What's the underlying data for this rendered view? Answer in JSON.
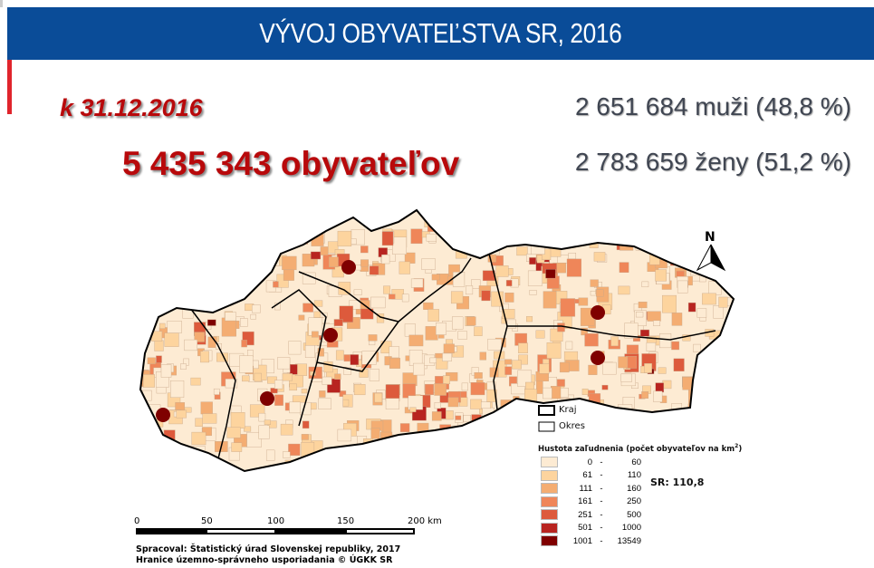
{
  "header": {
    "title": "VÝVOJ OBYVATEĽSTVA SR, 2016"
  },
  "summary": {
    "date": "k 31.12.2016",
    "total": "5 435 343 obyvateľov",
    "men": "2 651 684 muži (48,8 %)",
    "women": "2 783 659 ženy (51,2 %)"
  },
  "map": {
    "north_label": "N",
    "legend": {
      "boundary_kraj": "Kraj",
      "boundary_okres": "Okres",
      "title": "Hustota zaľudnenia (počet obyvateľov na km",
      "title_sup": "2",
      "title_close": ")",
      "classes": [
        {
          "low": "0",
          "high": "60",
          "color": "#fdebd3"
        },
        {
          "low": "61",
          "high": "110",
          "color": "#fdd49e"
        },
        {
          "low": "111",
          "high": "160",
          "color": "#f4ad72"
        },
        {
          "low": "161",
          "high": "250",
          "color": "#ef8659"
        },
        {
          "low": "251",
          "high": "500",
          "color": "#dd5a3c"
        },
        {
          "low": "501",
          "high": "1000",
          "color": "#b82420"
        },
        {
          "low": "1001",
          "high": "13549",
          "color": "#7f0000"
        }
      ],
      "national_average": "SR: 110,8"
    },
    "scale_bar": {
      "ticks": [
        "0",
        "50",
        "100",
        "150",
        "200 km"
      ]
    },
    "credits": [
      "Spracoval: Štatistický úrad Slovenskej republiky, 2017",
      "Hranice územno-správneho usporiadania © ÚGKK SR"
    ]
  }
}
